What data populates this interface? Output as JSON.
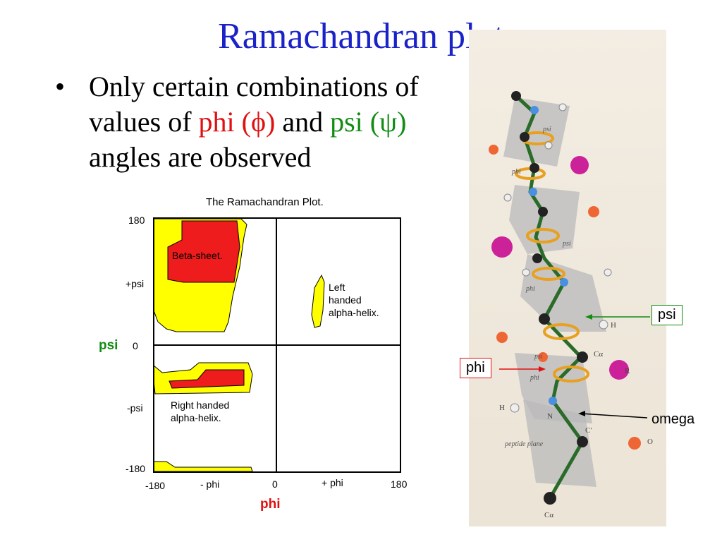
{
  "slide": {
    "title": "Ramachandran plot",
    "bullet": {
      "dot": "•",
      "t1": "Only certain combinations of values of ",
      "phi": "phi (ϕ)",
      "t2": " and ",
      "psi": "psi (ψ)",
      "t3": " angles are observed"
    }
  },
  "plot": {
    "title": "The Ramachandran Plot.",
    "y_ticks": [
      "180",
      "+psi",
      "0",
      "-psi",
      "-180"
    ],
    "x_ticks": [
      "-180",
      "- phi",
      "0",
      "+ phi",
      "180"
    ],
    "y_axis_label": "psi",
    "x_axis_label": "phi",
    "regions": {
      "beta": "Beta-sheet.",
      "left_helix": [
        "Left",
        "handed",
        "alpha-helix."
      ],
      "right_helix": [
        "Right handed",
        "alpha-helix."
      ]
    },
    "colors": {
      "allowed": "#ffff00",
      "core": "#ee1c1c",
      "outline": "#000000"
    }
  },
  "figure": {
    "callouts": {
      "psi": "psi",
      "phi": "phi",
      "omega": "omega"
    },
    "labels": {
      "psi1_top": "psi",
      "phi1_top": "phi",
      "psi2": "psi",
      "phi2": "phi",
      "psi_mid": "psi",
      "phi_mid": "phi",
      "peptide_plane": "peptide plane",
      "H1": "H",
      "H2": "H",
      "N": "N",
      "C_alpha_mid": "Cα",
      "C_prime": "C'",
      "O": "O",
      "R": "R",
      "C_alpha_bottom": "Cα"
    }
  }
}
